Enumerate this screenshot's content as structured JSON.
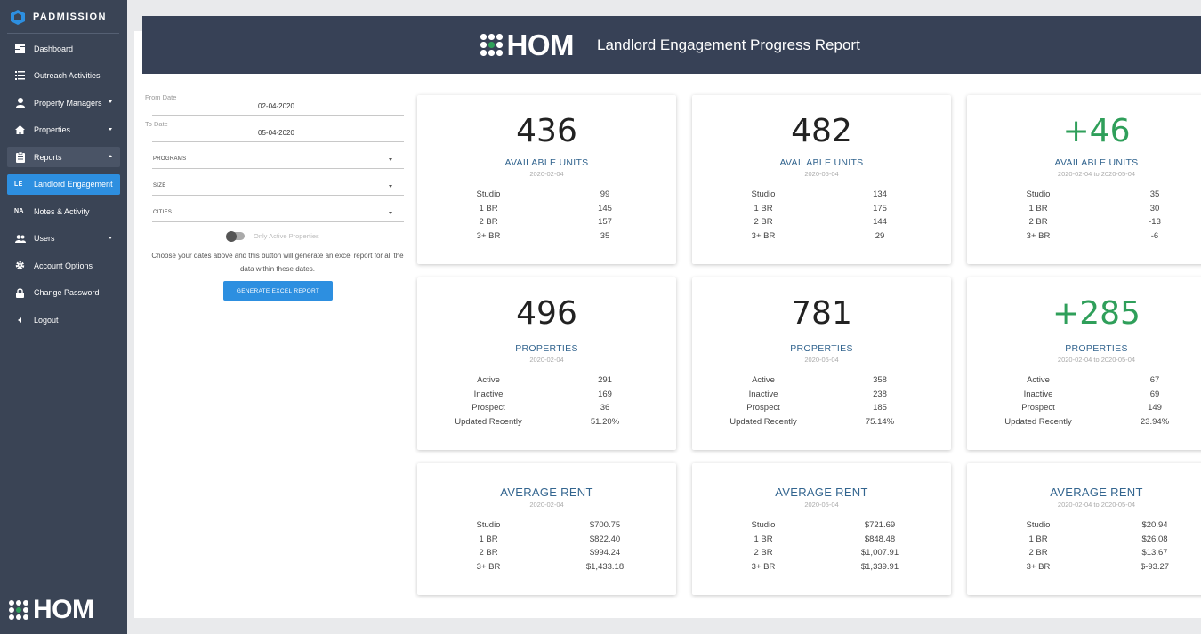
{
  "sidebar": {
    "brand": "PADMISSION",
    "items": [
      {
        "label": "Dashboard"
      },
      {
        "label": "Outreach Activities"
      },
      {
        "label": "Property Managers"
      },
      {
        "label": "Properties"
      },
      {
        "label": "Reports"
      },
      {
        "abbr": "LE",
        "label": "Landlord Engagement"
      },
      {
        "abbr": "NA",
        "label": "Notes & Activity"
      },
      {
        "label": "Users"
      },
      {
        "label": "Account Options"
      },
      {
        "label": "Change Password"
      },
      {
        "label": "Logout"
      }
    ],
    "footer_logo": "HOM"
  },
  "header": {
    "logo": "HOM",
    "title": "Landlord Engagement Progress Report"
  },
  "filters": {
    "from_label": "From Date",
    "from_value": "02-04-2020",
    "to_label": "To Date",
    "to_value": "05-04-2020",
    "programs": "PROGRAMS",
    "size": "SIZE",
    "cities": "CITIES",
    "toggle_label": "Only Active Properties",
    "help_text": "Choose your dates above and this button will generate an excel report for all the data within these dates.",
    "button": "GENERATE EXCEL REPORT"
  },
  "cards": [
    {
      "big": "436",
      "metric": "AVAILABLE UNITS",
      "date": "2020-02-04",
      "rows": [
        [
          "Studio",
          "99"
        ],
        [
          "1 BR",
          "145"
        ],
        [
          "2 BR",
          "157"
        ],
        [
          "3+ BR",
          "35"
        ]
      ]
    },
    {
      "big": "482",
      "metric": "AVAILABLE UNITS",
      "date": "2020-05-04",
      "rows": [
        [
          "Studio",
          "134"
        ],
        [
          "1 BR",
          "175"
        ],
        [
          "2 BR",
          "144"
        ],
        [
          "3+ BR",
          "29"
        ]
      ]
    },
    {
      "big": "+46",
      "metric": "AVAILABLE UNITS",
      "date": "2020-02-04 to 2020-05-04",
      "rows": [
        [
          "Studio",
          "35"
        ],
        [
          "1 BR",
          "30"
        ],
        [
          "2 BR",
          "-13"
        ],
        [
          "3+ BR",
          "-6"
        ]
      ]
    },
    {
      "big": "496",
      "metric": "PROPERTIES",
      "date": "2020-02-04",
      "rows": [
        [
          "Active",
          "291"
        ],
        [
          "Inactive",
          "169"
        ],
        [
          "Prospect",
          "36"
        ],
        [
          "Updated Recently",
          "51.20%"
        ]
      ]
    },
    {
      "big": "781",
      "metric": "PROPERTIES",
      "date": "2020-05-04",
      "rows": [
        [
          "Active",
          "358"
        ],
        [
          "Inactive",
          "238"
        ],
        [
          "Prospect",
          "185"
        ],
        [
          "Updated Recently",
          "75.14%"
        ]
      ]
    },
    {
      "big": "+285",
      "metric": "PROPERTIES",
      "date": "2020-02-04 to 2020-05-04",
      "rows": [
        [
          "Active",
          "67"
        ],
        [
          "Inactive",
          "69"
        ],
        [
          "Prospect",
          "149"
        ],
        [
          "Updated Recently",
          "23.94%"
        ]
      ]
    },
    {
      "metric": "AVERAGE RENT",
      "date": "2020-02-04",
      "rows": [
        [
          "Studio",
          "$700.75"
        ],
        [
          "1 BR",
          "$822.40"
        ],
        [
          "2 BR",
          "$994.24"
        ],
        [
          "3+ BR",
          "$1,433.18"
        ]
      ]
    },
    {
      "metric": "AVERAGE RENT",
      "date": "2020-05-04",
      "rows": [
        [
          "Studio",
          "$721.69"
        ],
        [
          "1 BR",
          "$848.48"
        ],
        [
          "2 BR",
          "$1,007.91"
        ],
        [
          "3+ BR",
          "$1,339.91"
        ]
      ]
    },
    {
      "metric": "AVERAGE RENT",
      "date": "2020-02-04 to 2020-05-04",
      "rows": [
        [
          "Studio",
          "$20.94"
        ],
        [
          "1 BR",
          "$26.08"
        ],
        [
          "2 BR",
          "$13.67"
        ],
        [
          "3+ BR",
          "$-93.27"
        ]
      ]
    }
  ],
  "colors": {
    "sidebar_bg": "#3a4455",
    "header_bg": "#374156",
    "accent_blue": "#2d8fe0",
    "positive_green": "#2f9f5a",
    "metric_blue": "#33658f"
  }
}
